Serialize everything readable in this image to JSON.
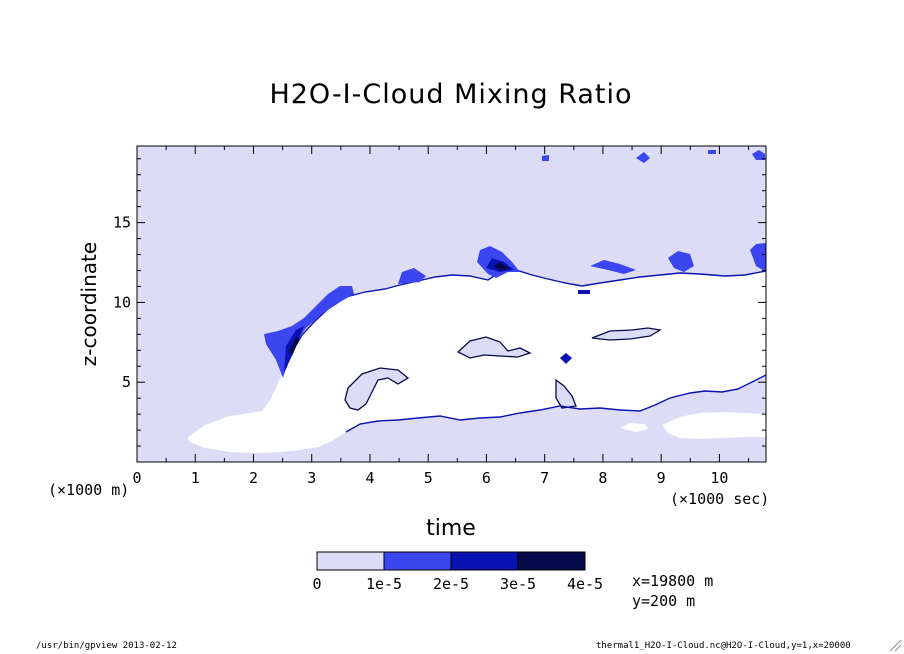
{
  "chart_data": {
    "type": "heatmap",
    "title": "H2O-I-Cloud Mixing Ratio",
    "xlabel": "time",
    "ylabel": "z-coordinate",
    "x_units_label": "(×1000 sec)",
    "y_units_label": "(×1000 m)",
    "xlim": [
      0,
      10.8
    ],
    "ylim": [
      0,
      19.8
    ],
    "x_ticks": [
      "0",
      "1",
      "2",
      "3",
      "4",
      "5",
      "6",
      "7",
      "8",
      "9",
      "10"
    ],
    "y_ticks": [
      "5",
      "10",
      "15"
    ],
    "colorbar": {
      "labels": [
        "0",
        "1e-5",
        "2e-5",
        "3e-5",
        "4e-5"
      ],
      "colors": [
        "#dcdcf6",
        "#3b46f0",
        "#0a12b4",
        "#050a4a"
      ]
    },
    "annotation": [
      "x=19800 m",
      "y=200 m"
    ],
    "cloud_free_color": "#ffffff"
  },
  "footer": {
    "left": "/usr/bin/gpview  2013-02-12",
    "right": "thermal1_H2O-I-Cloud.nc@H2O-I-Cloud,y=1,x=20000"
  },
  "colors": {
    "background": "#ffffff",
    "axis": "#000000"
  }
}
